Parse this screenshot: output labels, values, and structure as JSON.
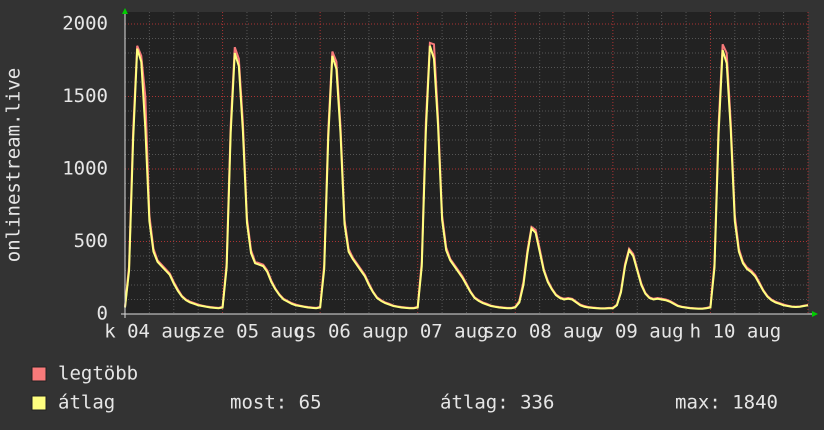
{
  "chart_data": {
    "type": "line",
    "y_label": "onlinestream.live",
    "x_labels": [
      "k 04 aug",
      "sze 05 aug",
      "cs 06 aug",
      "p 07 aug",
      "szo 08 aug",
      "v 09 aug",
      "h 10 aug"
    ],
    "xlim": [
      0,
      168
    ],
    "xticks": [
      0,
      24,
      48,
      72,
      96,
      120,
      144,
      168
    ],
    "ylim": [
      0,
      2000
    ],
    "yticks": [
      0,
      500,
      1000,
      1500,
      2000
    ],
    "grid": true,
    "x": [
      0,
      1,
      2,
      3,
      4,
      5,
      6,
      7,
      8,
      9,
      10,
      11,
      12,
      13,
      14,
      15,
      16,
      17,
      18,
      19,
      20,
      21,
      22,
      23,
      24,
      25,
      26,
      27,
      28,
      29,
      30,
      31,
      32,
      33,
      34,
      35,
      36,
      37,
      38,
      39,
      40,
      41,
      42,
      43,
      44,
      45,
      46,
      47,
      48,
      49,
      50,
      51,
      52,
      53,
      54,
      55,
      56,
      57,
      58,
      59,
      60,
      61,
      62,
      63,
      64,
      65,
      66,
      67,
      68,
      69,
      70,
      71,
      72,
      73,
      74,
      75,
      76,
      77,
      78,
      79,
      80,
      81,
      82,
      83,
      84,
      85,
      86,
      87,
      88,
      89,
      90,
      91,
      92,
      93,
      94,
      95,
      96,
      97,
      98,
      99,
      100,
      101,
      102,
      103,
      104,
      105,
      106,
      107,
      108,
      109,
      110,
      111,
      112,
      113,
      114,
      115,
      116,
      117,
      118,
      119,
      120,
      121,
      122,
      123,
      124,
      125,
      126,
      127,
      128,
      129,
      130,
      131,
      132,
      133,
      134,
      135,
      136,
      137,
      138,
      139,
      140,
      141,
      142,
      143,
      144,
      145,
      146,
      147,
      148,
      149,
      150,
      151,
      152,
      153,
      154,
      155,
      156,
      157,
      158,
      159,
      160,
      161,
      162,
      163,
      164,
      165,
      166,
      167,
      168
    ],
    "series": [
      {
        "name": "legtöbb",
        "color": "#f87a7a",
        "values": [
          50,
          330,
          1260,
          1850,
          1780,
          1500,
          680,
          450,
          370,
          340,
          310,
          280,
          220,
          170,
          125,
          100,
          85,
          75,
          65,
          58,
          52,
          48,
          45,
          42,
          50,
          350,
          1300,
          1840,
          1760,
          1320,
          660,
          440,
          360,
          350,
          340,
          300,
          230,
          175,
          135,
          105,
          90,
          75,
          65,
          58,
          52,
          48,
          45,
          42,
          50,
          340,
          1270,
          1810,
          1740,
          1300,
          650,
          450,
          390,
          350,
          310,
          270,
          210,
          155,
          115,
          95,
          80,
          70,
          58,
          52,
          48,
          45,
          42,
          42,
          50,
          360,
          1320,
          1870,
          1860,
          1350,
          680,
          460,
          380,
          340,
          300,
          260,
          210,
          155,
          115,
          95,
          80,
          70,
          58,
          52,
          48,
          45,
          42,
          42,
          50,
          90,
          220,
          440,
          600,
          580,
          450,
          310,
          230,
          175,
          135,
          115,
          105,
          110,
          105,
          85,
          65,
          55,
          48,
          45,
          42,
          40,
          40,
          42,
          42,
          65,
          160,
          345,
          450,
          415,
          310,
          210,
          145,
          115,
          105,
          110,
          105,
          100,
          90,
          75,
          58,
          50,
          46,
          42,
          40,
          38,
          38,
          42,
          50,
          350,
          1300,
          1860,
          1800,
          1320,
          680,
          450,
          360,
          320,
          300,
          270,
          220,
          165,
          125,
          100,
          85,
          75,
          65,
          58,
          52,
          50,
          52,
          58,
          62
        ]
      },
      {
        "name": "átlag",
        "color": "#ffff80",
        "values": [
          45,
          300,
          1200,
          1830,
          1740,
          1280,
          640,
          430,
          360,
          330,
          300,
          270,
          210,
          160,
          120,
          95,
          80,
          70,
          60,
          55,
          50,
          45,
          42,
          40,
          45,
          320,
          1250,
          1800,
          1710,
          1260,
          630,
          420,
          350,
          340,
          330,
          290,
          220,
          170,
          130,
          100,
          85,
          70,
          60,
          55,
          50,
          45,
          42,
          40,
          45,
          310,
          1220,
          1780,
          1690,
          1250,
          620,
          430,
          380,
          340,
          300,
          260,
          200,
          150,
          110,
          90,
          75,
          65,
          55,
          50,
          45,
          42,
          40,
          40,
          45,
          330,
          1260,
          1850,
          1760,
          1300,
          650,
          440,
          370,
          330,
          290,
          250,
          200,
          150,
          110,
          90,
          75,
          65,
          55,
          50,
          45,
          42,
          40,
          40,
          45,
          80,
          200,
          420,
          590,
          560,
          430,
          300,
          220,
          170,
          130,
          110,
          100,
          105,
          100,
          80,
          60,
          50,
          45,
          42,
          40,
          38,
          38,
          40,
          40,
          60,
          150,
          330,
          440,
          400,
          300,
          200,
          140,
          110,
          100,
          105,
          100,
          95,
          85,
          70,
          55,
          48,
          44,
          40,
          38,
          36,
          36,
          40,
          45,
          320,
          1240,
          1820,
          1730,
          1270,
          640,
          430,
          350,
          310,
          290,
          260,
          210,
          160,
          120,
          95,
          80,
          70,
          60,
          55,
          50,
          48,
          50,
          55,
          60
        ]
      }
    ],
    "stats": [
      "most: 65",
      "átlag: 336",
      "max: 1840"
    ]
  }
}
